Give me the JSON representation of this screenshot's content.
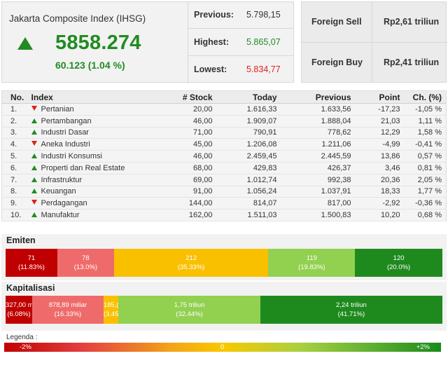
{
  "ihsg": {
    "title": "Jakarta Composite Index (IHSG)",
    "value": "5858.274",
    "change": "60.123 (1.04 %)",
    "direction_icon": "up-triangle-icon",
    "stats": [
      {
        "label": "Previous:",
        "value": "5.798,15",
        "tone": "neutral"
      },
      {
        "label": "Highest:",
        "value": "5.865,07",
        "tone": "green"
      },
      {
        "label": "Lowest:",
        "value": "5.834,77",
        "tone": "red"
      }
    ]
  },
  "foreign": [
    {
      "label": "Foreign Sell",
      "value": "Rp2,61 triliun"
    },
    {
      "label": "Foreign Buy",
      "value": "Rp2,41 triliun"
    }
  ],
  "table": {
    "headers": [
      "No.",
      "Index",
      "# Stock",
      "Today",
      "Previous",
      "Point",
      "Ch. (%)"
    ],
    "rows": [
      {
        "no": "1.",
        "trend": "down",
        "name": "Pertanian",
        "stock": "20,00",
        "today": "1.616,33",
        "previous": "1.633,56",
        "point": "-17,23",
        "ch": "-1,05 %"
      },
      {
        "no": "2.",
        "trend": "up",
        "name": "Pertambangan",
        "stock": "46,00",
        "today": "1.909,07",
        "previous": "1.888,04",
        "point": "21,03",
        "ch": "1,11 %"
      },
      {
        "no": "3.",
        "trend": "up",
        "name": "Industri Dasar",
        "stock": "71,00",
        "today": "790,91",
        "previous": "778,62",
        "point": "12,29",
        "ch": "1,58 %"
      },
      {
        "no": "4.",
        "trend": "down",
        "name": "Aneka Industri",
        "stock": "45,00",
        "today": "1.206,08",
        "previous": "1.211,06",
        "point": "-4,99",
        "ch": "-0,41 %"
      },
      {
        "no": "5.",
        "trend": "up",
        "name": "Industri Konsumsi",
        "stock": "46,00",
        "today": "2.459,45",
        "previous": "2.445,59",
        "point": "13,86",
        "ch": "0,57 %"
      },
      {
        "no": "6.",
        "trend": "up",
        "name": "Properti dan Real Estate",
        "stock": "68,00",
        "today": "429,83",
        "previous": "426,37",
        "point": "3,46",
        "ch": "0,81 %"
      },
      {
        "no": "7.",
        "trend": "up",
        "name": "Infrastruktur",
        "stock": "69,00",
        "today": "1.012,74",
        "previous": "992,38",
        "point": "20,36",
        "ch": "2,05 %"
      },
      {
        "no": "8.",
        "trend": "up",
        "name": "Keuangan",
        "stock": "91,00",
        "today": "1.056,24",
        "previous": "1.037,91",
        "point": "18,33",
        "ch": "1,77 %"
      },
      {
        "no": "9.",
        "trend": "down",
        "name": "Perdagangan",
        "stock": "144,00",
        "today": "814,07",
        "previous": "817,00",
        "point": "-2,92",
        "ch": "-0,36 %"
      },
      {
        "no": "10.",
        "trend": "up",
        "name": "Manufaktur",
        "stock": "162,00",
        "today": "1.511,03",
        "previous": "1.500,83",
        "point": "10,20",
        "ch": "0,68 %"
      }
    ]
  },
  "emiten": {
    "title": "Emiten",
    "segments": [
      {
        "value": "71",
        "pct": "(11.83%)",
        "share": 11.83,
        "color": "#c00000"
      },
      {
        "value": "78",
        "pct": "(13.0%)",
        "share": 13.0,
        "color": "#ef6b6b"
      },
      {
        "value": "212",
        "pct": "(35.33%)",
        "share": 35.33,
        "color": "#f9c000"
      },
      {
        "value": "119",
        "pct": "(19.83%)",
        "share": 19.83,
        "color": "#92d050"
      },
      {
        "value": "120",
        "pct": "(20.0%)",
        "share": 20.0,
        "color": "#1e8a1e"
      }
    ]
  },
  "kapitalisasi": {
    "title": "Kapitalisasi",
    "segments": [
      {
        "value": "327,00 m",
        "pct": "(6.08%)",
        "share": 6.08,
        "color": "#c00000"
      },
      {
        "value": "878,89 miliar",
        "pct": "(16.33%)",
        "share": 16.33,
        "color": "#ef6b6b"
      },
      {
        "value": "185,(",
        "pct": "(3.45",
        "share": 3.45,
        "color": "#f9c000"
      },
      {
        "value": "1,75 triliun",
        "pct": "(32.44%)",
        "share": 32.44,
        "color": "#92d050"
      },
      {
        "value": "2,24 triliun",
        "pct": "(41.71%)",
        "share": 41.71,
        "color": "#1e8a1e"
      }
    ]
  },
  "legend": {
    "title": "Legenda :",
    "min": "-2%",
    "mid": "0",
    "max": "+2%"
  }
}
